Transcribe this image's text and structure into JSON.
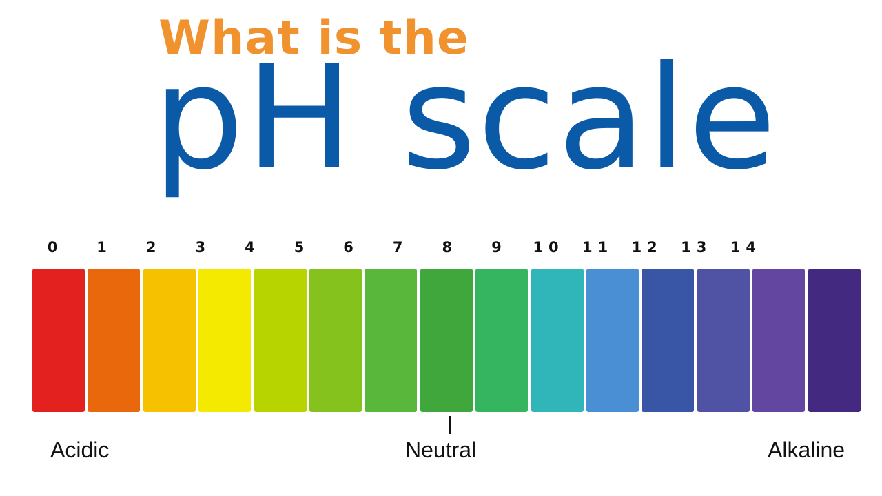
{
  "title": {
    "line1": "What is the",
    "line2": "pH scale",
    "line1_color": "#f0922e",
    "line2_color": "#0a5aa8"
  },
  "scale": {
    "numbers": [
      "0",
      "1",
      "2",
      "3",
      "4",
      "5",
      "6",
      "7",
      "8",
      "9",
      "10",
      "11",
      "12",
      "13",
      "14"
    ],
    "colors": [
      "#e3211f",
      "#e8680b",
      "#f6c200",
      "#f4ea00",
      "#b8d400",
      "#85c21e",
      "#59b73c",
      "#3fa73c",
      "#36b560",
      "#30b6b8",
      "#4a8fd3",
      "#3955a6",
      "#5052a4",
      "#6346a0",
      "#43297f"
    ]
  },
  "labels": {
    "acidic": "Acidic",
    "neutral": "Neutral",
    "alkaline": "Alkaline"
  }
}
